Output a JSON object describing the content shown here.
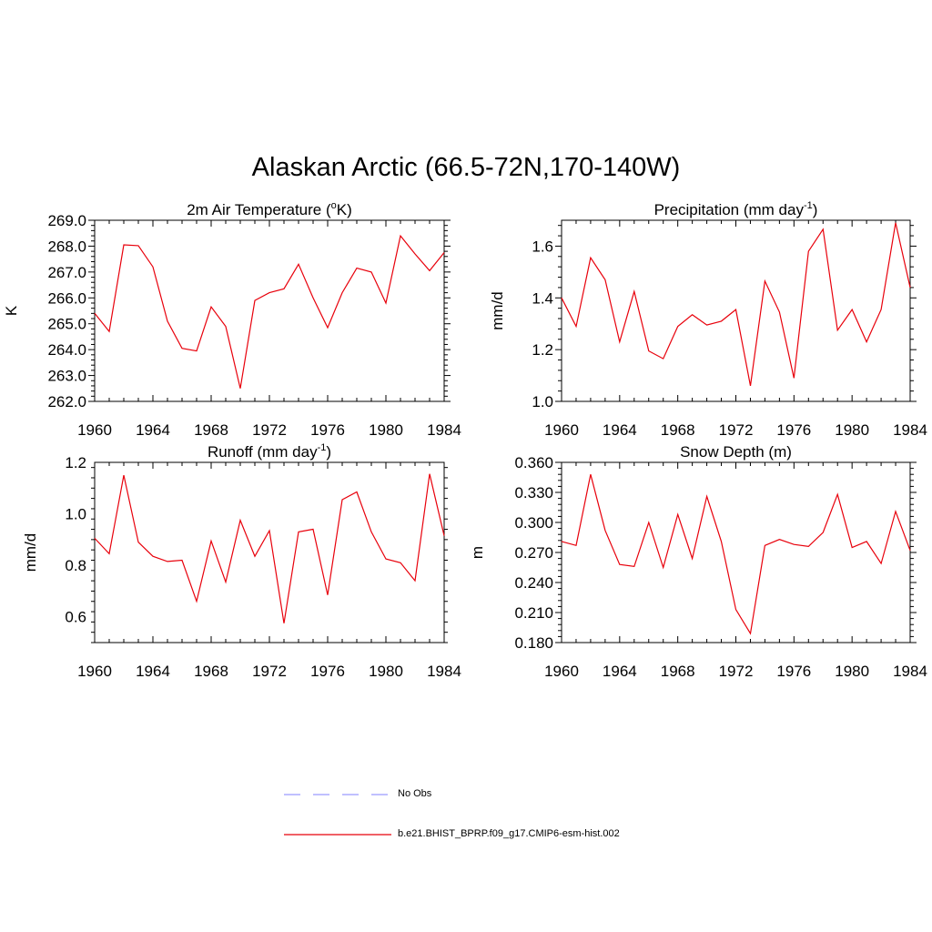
{
  "title": "Alaskan Arctic (66.5-72N,170-140W)",
  "colors": {
    "model": "#e8000b",
    "obs": "#9b9bff"
  },
  "legend": [
    {
      "label": "No Obs",
      "style": "dashed",
      "color": "#9b9bff"
    },
    {
      "label": "b.e21.BHIST_BPRP.f09_g17.CMIP6-esm-hist.002",
      "style": "solid",
      "color": "#e8000b"
    }
  ],
  "chart_data": [
    {
      "type": "line",
      "title": "2m Air Temperature (",
      "title_sup": "o",
      "title_tail": "K)",
      "ylabel": "K",
      "xlim": [
        1960,
        1984
      ],
      "ylim": [
        262.0,
        269.0
      ],
      "xticks": [
        "1960",
        "1964",
        "1968",
        "1972",
        "1976",
        "1980",
        "1984"
      ],
      "yticks": [
        "262.0",
        "263.0",
        "264.0",
        "265.0",
        "266.0",
        "267.0",
        "268.0",
        "269.0"
      ],
      "x": [
        1960,
        1961,
        1962,
        1963,
        1964,
        1965,
        1966,
        1967,
        1968,
        1969,
        1970,
        1971,
        1972,
        1973,
        1974,
        1975,
        1976,
        1977,
        1978,
        1979,
        1980,
        1981,
        1982,
        1983,
        1984
      ],
      "series": [
        {
          "values": [
            265.4,
            264.7,
            268.05,
            268.02,
            267.2,
            265.1,
            264.05,
            263.95,
            265.65,
            264.9,
            262.5,
            265.9,
            266.2,
            266.35,
            267.3,
            266.0,
            264.85,
            266.2,
            267.15,
            267.0,
            265.8,
            268.4,
            267.7,
            267.05,
            267.75
          ]
        }
      ]
    },
    {
      "type": "line",
      "title": "Precipitation (mm day",
      "title_sup": "-1",
      "title_tail": ")",
      "ylabel": "mm/d",
      "xlim": [
        1960,
        1984
      ],
      "ylim": [
        1.0,
        1.7
      ],
      "xticks": [
        "1960",
        "1964",
        "1968",
        "1972",
        "1976",
        "1980",
        "1984"
      ],
      "yticks": [
        "1.0",
        "1.2",
        "1.4",
        "1.6"
      ],
      "ytick_values": [
        1.0,
        1.2,
        1.4,
        1.6
      ],
      "x": [
        1960,
        1961,
        1962,
        1963,
        1964,
        1965,
        1966,
        1967,
        1968,
        1969,
        1970,
        1971,
        1972,
        1973,
        1974,
        1975,
        1976,
        1977,
        1978,
        1979,
        1980,
        1981,
        1982,
        1983,
        1984
      ],
      "series": [
        {
          "values": [
            1.4,
            1.29,
            1.555,
            1.47,
            1.23,
            1.425,
            1.195,
            1.165,
            1.29,
            1.335,
            1.295,
            1.31,
            1.355,
            1.06,
            1.465,
            1.345,
            1.09,
            1.58,
            1.665,
            1.275,
            1.355,
            1.23,
            1.355,
            1.69,
            1.44
          ]
        }
      ]
    },
    {
      "type": "line",
      "title": "Runoff (mm day",
      "title_sup": "-1",
      "title_tail": ")",
      "ylabel": "mm/d",
      "xlim": [
        1960,
        1984
      ],
      "ylim": [
        0.5,
        1.2
      ],
      "xticks": [
        "1960",
        "1964",
        "1968",
        "1972",
        "1976",
        "1980",
        "1984"
      ],
      "yticks": [
        "0.6",
        "0.8",
        "1.0",
        "1.2"
      ],
      "ytick_values": [
        0.6,
        0.8,
        1.0,
        1.2
      ],
      "x": [
        1960,
        1961,
        1962,
        1963,
        1964,
        1965,
        1966,
        1967,
        1968,
        1969,
        1970,
        1971,
        1972,
        1973,
        1974,
        1975,
        1976,
        1977,
        1978,
        1979,
        1980,
        1981,
        1982,
        1983,
        1984
      ],
      "series": [
        {
          "values": [
            0.905,
            0.845,
            1.15,
            0.89,
            0.835,
            0.815,
            0.82,
            0.66,
            0.895,
            0.735,
            0.975,
            0.835,
            0.935,
            0.575,
            0.93,
            0.94,
            0.685,
            1.055,
            1.085,
            0.93,
            0.825,
            0.81,
            0.74,
            1.155,
            0.915
          ]
        }
      ]
    },
    {
      "type": "line",
      "title": "Snow Depth (m)",
      "title_sup": "",
      "title_tail": "",
      "ylabel": "m",
      "xlim": [
        1960,
        1984
      ],
      "ylim": [
        0.18,
        0.36
      ],
      "xticks": [
        "1960",
        "1964",
        "1968",
        "1972",
        "1976",
        "1980",
        "1984"
      ],
      "yticks": [
        "0.180",
        "0.210",
        "0.240",
        "0.270",
        "0.300",
        "0.330",
        "0.360"
      ],
      "ytick_values": [
        0.18,
        0.21,
        0.24,
        0.27,
        0.3,
        0.33,
        0.36
      ],
      "x": [
        1960,
        1961,
        1962,
        1963,
        1964,
        1965,
        1966,
        1967,
        1968,
        1969,
        1970,
        1971,
        1972,
        1973,
        1974,
        1975,
        1976,
        1977,
        1978,
        1979,
        1980,
        1981,
        1982,
        1983,
        1984
      ],
      "series": [
        {
          "values": [
            0.281,
            0.277,
            0.348,
            0.292,
            0.258,
            0.256,
            0.3,
            0.255,
            0.308,
            0.264,
            0.326,
            0.281,
            0.213,
            0.189,
            0.277,
            0.283,
            0.278,
            0.276,
            0.29,
            0.328,
            0.275,
            0.281,
            0.259,
            0.311,
            0.272
          ]
        }
      ]
    }
  ]
}
